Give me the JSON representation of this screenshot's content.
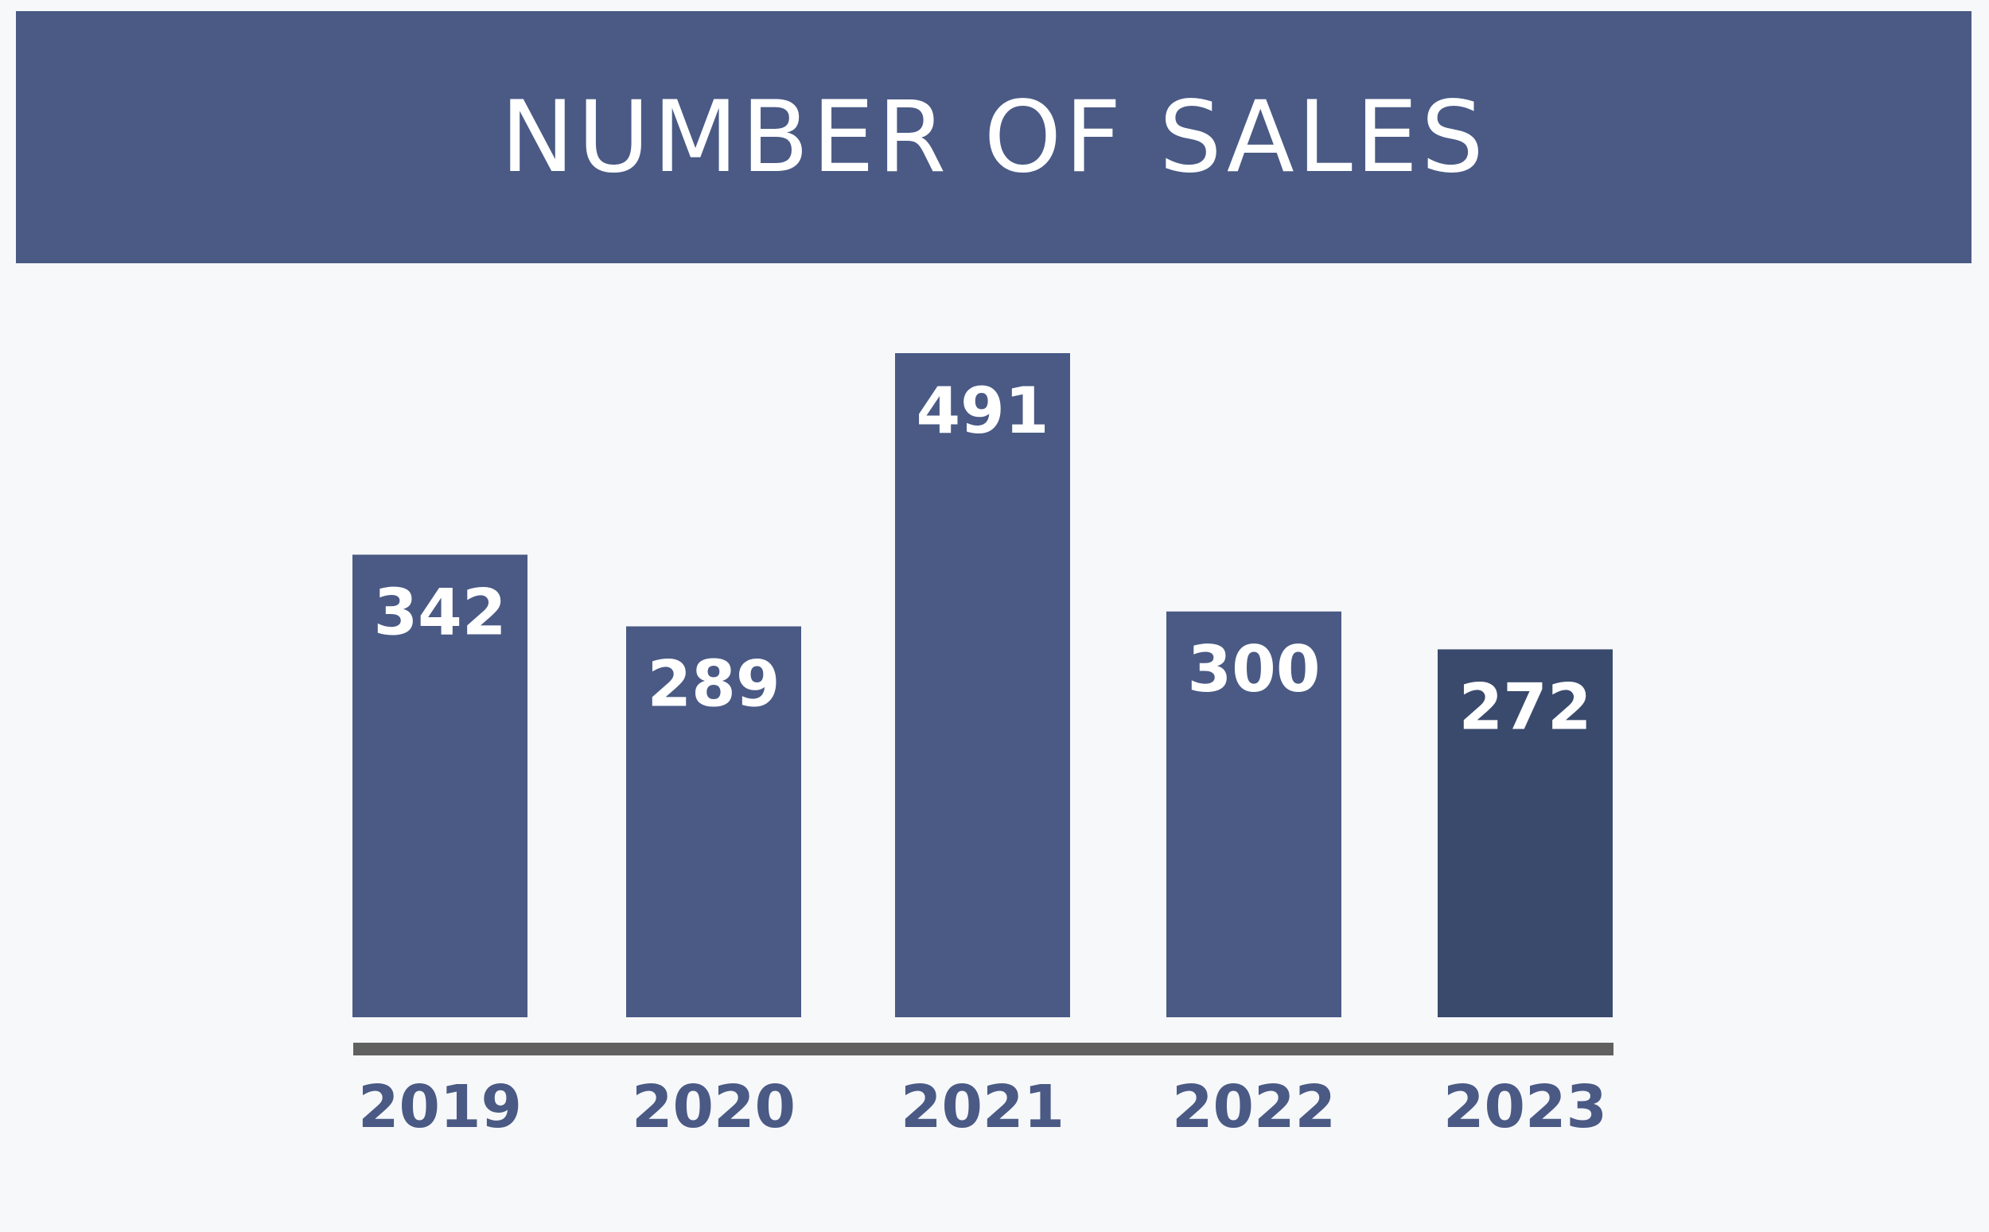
{
  "chart_data": {
    "type": "bar",
    "title": "NUMBER OF SALES",
    "categories": [
      "2019",
      "2020",
      "2021",
      "2022",
      "2023"
    ],
    "values": [
      342,
      289,
      491,
      300,
      272
    ],
    "data_labels": [
      "342",
      "289",
      "491",
      "300",
      "272"
    ],
    "highlight_index": 4,
    "xlabel": "",
    "ylabel": "",
    "ylim": [
      0,
      491
    ],
    "grid": false,
    "legend": "none",
    "colors": {
      "banner": "#4a5a85",
      "bar": "#4a5a85",
      "bar_highlight": "#3a4a6d",
      "axis": "#606060",
      "label_text": "#ffffff",
      "tick_text": "#4a5a85",
      "background": "#f7f8fa"
    }
  }
}
